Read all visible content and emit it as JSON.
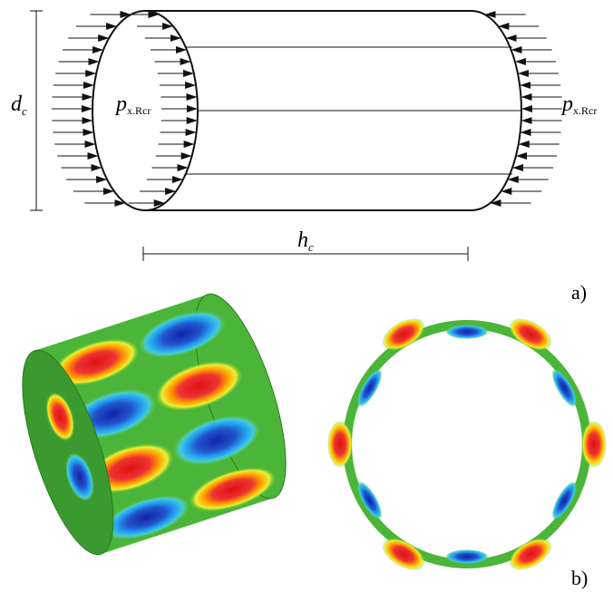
{
  "labels": {
    "diameter": {
      "symbol": "d",
      "subscript": "c"
    },
    "load_left": {
      "symbol": "p",
      "subscript": "x.Rcr"
    },
    "load_right": {
      "symbol": "p",
      "subscript": "x.Rcr"
    },
    "height": {
      "symbol": "h",
      "subscript": "c"
    }
  },
  "panels": [
    "a)",
    "b)"
  ]
}
